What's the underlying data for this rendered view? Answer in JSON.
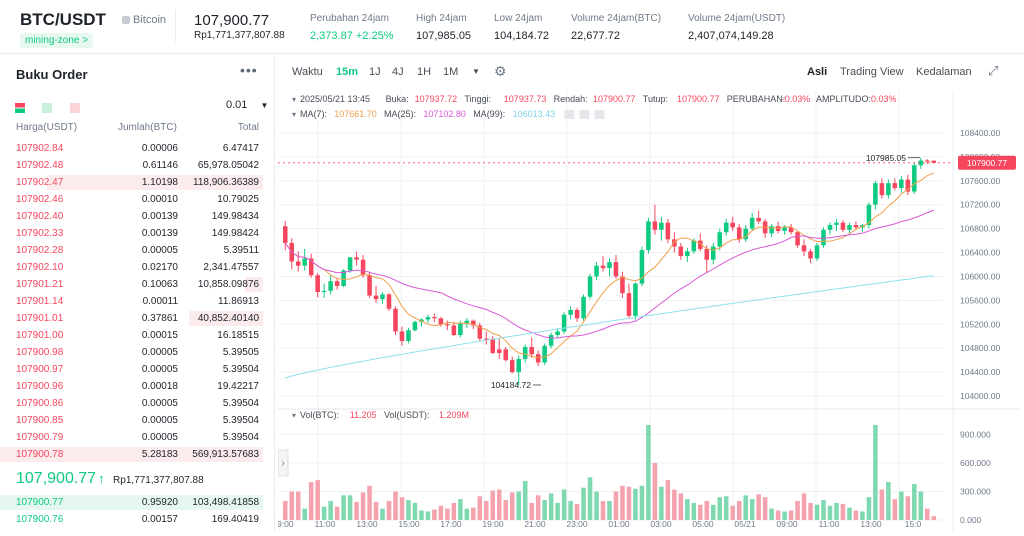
{
  "header": {
    "pair": "BTC/USDT",
    "coin_name": "Bitcoin",
    "tag": "mining-zone",
    "tag_arrow": ">",
    "last_price": "107,900.77",
    "last_price_fiat": "Rp1,771,377,807.88",
    "stats": [
      {
        "label": "Perubahan 24jam",
        "value": "2,373.87 +2.25%",
        "color": "#0ecb81"
      },
      {
        "label": "High 24jam",
        "value": "107,985.05",
        "color": "#1e2329"
      },
      {
        "label": "Low 24jam",
        "value": "104,184.72",
        "color": "#1e2329"
      },
      {
        "label": "Volume 24jam(BTC)",
        "value": "22,677.72",
        "color": "#1e2329"
      },
      {
        "label": "Volume 24jam(USDT)",
        "value": "2,407,074,149.28",
        "color": "#1e2329"
      }
    ]
  },
  "orderbook": {
    "title": "Buku Order",
    "more": "•••",
    "precision": "0.01",
    "col_price": "Harga(USDT)",
    "col_amount": "Jumlah(BTC)",
    "col_total": "Total",
    "asks": [
      {
        "price": "107902.84",
        "amount": "0.00006",
        "total": "6.47417",
        "depth": 0
      },
      {
        "price": "107902.48",
        "amount": "0.61146",
        "total": "65,978.05042",
        "depth": 0
      },
      {
        "price": "107902.47",
        "amount": "1.10198",
        "total": "118,906.36389",
        "depth": 0.82
      },
      {
        "price": "107902.46",
        "amount": "0.00010",
        "total": "10.79025",
        "depth": 0
      },
      {
        "price": "107902.40",
        "amount": "0.00139",
        "total": "149.98434",
        "depth": 0
      },
      {
        "price": "107902.33",
        "amount": "0.00139",
        "total": "149.98424",
        "depth": 0
      },
      {
        "price": "107902.28",
        "amount": "0.00005",
        "total": "5.39511",
        "depth": 0
      },
      {
        "price": "107902.10",
        "amount": "0.02170",
        "total": "2,341.47557",
        "depth": 0
      },
      {
        "price": "107901.21",
        "amount": "0.10063",
        "total": "10,858.09876",
        "depth": 0.07
      },
      {
        "price": "107901.14",
        "amount": "0.00011",
        "total": "11.86913",
        "depth": 0
      },
      {
        "price": "107901.01",
        "amount": "0.37861",
        "total": "40,852.40140",
        "depth": 0.28
      },
      {
        "price": "107901.00",
        "amount": "0.00015",
        "total": "16.18515",
        "depth": 0
      },
      {
        "price": "107900.98",
        "amount": "0.00005",
        "total": "5.39505",
        "depth": 0
      },
      {
        "price": "107900.97",
        "amount": "0.00005",
        "total": "5.39504",
        "depth": 0
      },
      {
        "price": "107900.96",
        "amount": "0.00018",
        "total": "19.42217",
        "depth": 0
      },
      {
        "price": "107900.86",
        "amount": "0.00005",
        "total": "5.39504",
        "depth": 0
      },
      {
        "price": "107900.85",
        "amount": "0.00005",
        "total": "5.39504",
        "depth": 0
      },
      {
        "price": "107900.79",
        "amount": "0.00005",
        "total": "5.39504",
        "depth": 0
      },
      {
        "price": "107900.78",
        "amount": "5.28183",
        "total": "569,913.57683",
        "depth": 1.0
      }
    ],
    "mid_price": "107,900.77",
    "mid_arrow": "↑",
    "mid_fiat": "Rp1,771,377,807.88",
    "bids": [
      {
        "price": "107900.77",
        "amount": "0.95920",
        "total": "103,498.41858",
        "depth": 1.0
      },
      {
        "price": "107900.76",
        "amount": "0.00157",
        "total": "169.40419",
        "depth": 0
      }
    ]
  },
  "toolbar": {
    "time_label": "Waktu",
    "intervals": [
      "15m",
      "1J",
      "4J",
      "1H",
      "1M"
    ],
    "active_interval": "15m",
    "views": [
      "Asli",
      "Trading View",
      "Kedalaman"
    ],
    "active_view": "Asli"
  },
  "chart_data": {
    "type": "candlestick",
    "info_date": "2025/05/21 13:45",
    "info_parts": [
      {
        "t": "Buka:",
        "c": "#474d57"
      },
      {
        "t": "107937.72",
        "c": "#f6465d"
      },
      {
        "t": "Tinggi:",
        "c": "#474d57"
      },
      {
        "t": "107937.73",
        "c": "#f6465d"
      },
      {
        "t": "Rendah:",
        "c": "#474d57"
      },
      {
        "t": "107900.77",
        "c": "#f6465d"
      },
      {
        "t": "Tutup:",
        "c": "#474d57"
      },
      {
        "t": "107900.77",
        "c": "#f6465d"
      },
      {
        "t": "PERUBAHAN:",
        "c": "#474d57"
      },
      {
        "t": "-0.03%",
        "c": "#f6465d"
      },
      {
        "t": "AMPLITUDO:",
        "c": "#474d57"
      },
      {
        "t": "0.03%",
        "c": "#f6465d"
      }
    ],
    "ma_parts": [
      {
        "t": "MA(7):",
        "c": "#474d57"
      },
      {
        "t": "107661.70",
        "c": "#f0a04b"
      },
      {
        "t": "MA(25):",
        "c": "#474d57"
      },
      {
        "t": "107102.80",
        "c": "#d958d9"
      },
      {
        "t": "MA(99):",
        "c": "#474d57"
      },
      {
        "t": "106013.43",
        "c": "#7fd6e8"
      }
    ],
    "vol_parts": [
      {
        "t": "Vol(BTC):",
        "c": "#474d57"
      },
      {
        "t": "11.205",
        "c": "#f6465d"
      },
      {
        "t": "Vol(USDT):",
        "c": "#474d57"
      },
      {
        "t": "1.209M",
        "c": "#f6465d"
      }
    ],
    "price_axis": [
      "108400.00",
      "108000.00",
      "107600.00",
      "107200.00",
      "106800.00",
      "106400.00",
      "106000.00",
      "105600.00",
      "105200.00",
      "104800.00",
      "104400.00",
      "104000.00"
    ],
    "price_range": [
      103900,
      108650
    ],
    "current_price_label": "107900.77",
    "high_label": "107985.05",
    "low_label": "104184.72",
    "vol_axis": [
      "900.000",
      "600.000",
      "300.000",
      "0.000"
    ],
    "vol_range": [
      0,
      1000
    ],
    "time_labels": [
      "09:00",
      "11:00",
      "13:00",
      "15:00",
      "17:00",
      "19:00",
      "21:00",
      "23:00",
      "01:00",
      "03:00",
      "05:00",
      "05/21",
      "09:00",
      "11:00",
      "13:00",
      "15:0"
    ],
    "candles": [
      [
        106840,
        106930,
        106440,
        106560,
        200,
        "down"
      ],
      [
        106560,
        106640,
        106120,
        106250,
        300,
        "down"
      ],
      [
        106250,
        106420,
        106080,
        106180,
        300,
        "down"
      ],
      [
        106180,
        106460,
        106100,
        106300,
        120,
        "up"
      ],
      [
        106300,
        106380,
        105980,
        106020,
        400,
        "down"
      ],
      [
        106020,
        106060,
        105650,
        105740,
        420,
        "down"
      ],
      [
        105740,
        105880,
        105640,
        105760,
        140,
        "up"
      ],
      [
        105760,
        106020,
        105700,
        105920,
        200,
        "up"
      ],
      [
        105920,
        105980,
        105780,
        105840,
        140,
        "down"
      ],
      [
        105840,
        106120,
        105820,
        106100,
        260,
        "up"
      ],
      [
        106100,
        106320,
        106060,
        106320,
        260,
        "up"
      ],
      [
        106320,
        106420,
        106180,
        106280,
        190,
        "down"
      ],
      [
        106280,
        106360,
        105980,
        106020,
        290,
        "down"
      ],
      [
        106020,
        106080,
        105640,
        105680,
        360,
        "down"
      ],
      [
        105680,
        105840,
        105560,
        105620,
        190,
        "down"
      ],
      [
        105620,
        105740,
        105540,
        105700,
        120,
        "up"
      ],
      [
        105700,
        105720,
        105420,
        105460,
        200,
        "down"
      ],
      [
        105460,
        105500,
        105020,
        105080,
        300,
        "down"
      ],
      [
        105080,
        105160,
        104840,
        104920,
        240,
        "down"
      ],
      [
        104920,
        105140,
        104880,
        105100,
        210,
        "up"
      ],
      [
        105100,
        105260,
        105080,
        105240,
        180,
        "up"
      ],
      [
        105240,
        105300,
        105160,
        105280,
        100,
        "up"
      ],
      [
        105280,
        105360,
        105220,
        105320,
        90,
        "up"
      ],
      [
        105320,
        105380,
        105240,
        105300,
        110,
        "down"
      ],
      [
        105300,
        105320,
        105160,
        105200,
        150,
        "down"
      ],
      [
        105200,
        105260,
        105100,
        105180,
        120,
        "down"
      ],
      [
        105180,
        105240,
        105000,
        105020,
        180,
        "down"
      ],
      [
        105020,
        105260,
        104980,
        105220,
        220,
        "up"
      ],
      [
        105220,
        105300,
        105140,
        105260,
        120,
        "up"
      ],
      [
        105260,
        105280,
        105120,
        105180,
        130,
        "down"
      ],
      [
        105180,
        105220,
        104920,
        104960,
        250,
        "down"
      ],
      [
        104960,
        105080,
        104860,
        104960,
        200,
        "down"
      ],
      [
        104960,
        105000,
        104700,
        104720,
        310,
        "down"
      ],
      [
        104720,
        104960,
        104620,
        104780,
        320,
        "down"
      ],
      [
        104780,
        104820,
        104580,
        104600,
        210,
        "down"
      ],
      [
        104600,
        104660,
        104380,
        104400,
        290,
        "down"
      ],
      [
        104400,
        104680,
        104184,
        104620,
        300,
        "up"
      ],
      [
        104620,
        104860,
        104560,
        104820,
        410,
        "up"
      ],
      [
        104820,
        104980,
        104640,
        104700,
        180,
        "down"
      ],
      [
        104700,
        104760,
        104500,
        104560,
        260,
        "down"
      ],
      [
        104560,
        104880,
        104520,
        104840,
        210,
        "up"
      ],
      [
        104840,
        105060,
        104800,
        105020,
        280,
        "up"
      ],
      [
        105020,
        105140,
        104980,
        105080,
        180,
        "up"
      ],
      [
        105080,
        105400,
        105040,
        105360,
        320,
        "up"
      ],
      [
        105360,
        105500,
        105280,
        105440,
        200,
        "up"
      ],
      [
        105440,
        105480,
        105240,
        105300,
        170,
        "down"
      ],
      [
        105300,
        105700,
        105260,
        105660,
        340,
        "up"
      ],
      [
        105660,
        106040,
        105620,
        106000,
        450,
        "up"
      ],
      [
        106000,
        106240,
        105940,
        106180,
        300,
        "up"
      ],
      [
        106180,
        106340,
        106080,
        106140,
        200,
        "down"
      ],
      [
        106140,
        106300,
        106000,
        106240,
        200,
        "up"
      ],
      [
        106240,
        106360,
        105960,
        106000,
        300,
        "down"
      ],
      [
        106000,
        106080,
        105640,
        105720,
        360,
        "down"
      ],
      [
        105720,
        105880,
        105300,
        105340,
        350,
        "down"
      ],
      [
        105340,
        105900,
        105280,
        105880,
        330,
        "up"
      ],
      [
        105880,
        106500,
        105840,
        106440,
        360,
        "up"
      ],
      [
        106440,
        106980,
        106380,
        106920,
        1000,
        "up"
      ],
      [
        106920,
        107200,
        106700,
        106780,
        600,
        "down"
      ],
      [
        106780,
        107000,
        106600,
        106900,
        350,
        "up"
      ],
      [
        106900,
        106960,
        106560,
        106620,
        420,
        "down"
      ],
      [
        106620,
        106740,
        106400,
        106500,
        320,
        "down"
      ],
      [
        106500,
        106560,
        106280,
        106340,
        280,
        "down"
      ],
      [
        106340,
        106480,
        106240,
        106420,
        220,
        "up"
      ],
      [
        106420,
        106640,
        106380,
        106600,
        180,
        "up"
      ],
      [
        106600,
        106720,
        106420,
        106460,
        160,
        "down"
      ],
      [
        106460,
        106520,
        106060,
        106280,
        200,
        "down"
      ],
      [
        106280,
        106560,
        106200,
        106500,
        160,
        "up"
      ],
      [
        106500,
        106800,
        106440,
        106740,
        240,
        "up"
      ],
      [
        106740,
        106960,
        106680,
        106900,
        250,
        "up"
      ],
      [
        106900,
        107000,
        106760,
        106820,
        150,
        "down"
      ],
      [
        106820,
        106880,
        106560,
        106620,
        200,
        "down"
      ],
      [
        106620,
        106860,
        106580,
        106800,
        260,
        "up"
      ],
      [
        106800,
        107060,
        106760,
        106980,
        220,
        "up"
      ],
      [
        106980,
        107100,
        106880,
        106920,
        270,
        "down"
      ],
      [
        106920,
        106960,
        106640,
        106720,
        240,
        "down"
      ],
      [
        106720,
        106880,
        106660,
        106840,
        120,
        "up"
      ],
      [
        106840,
        106920,
        106720,
        106760,
        100,
        "down"
      ],
      [
        106760,
        106860,
        106700,
        106820,
        90,
        "up"
      ],
      [
        106820,
        106880,
        106700,
        106740,
        100,
        "down"
      ],
      [
        106740,
        106760,
        106480,
        106520,
        200,
        "down"
      ],
      [
        106520,
        106620,
        106340,
        106420,
        280,
        "down"
      ],
      [
        106420,
        106460,
        106220,
        106300,
        180,
        "down"
      ],
      [
        106300,
        106560,
        106260,
        106520,
        160,
        "up"
      ],
      [
        106520,
        106820,
        106480,
        106780,
        210,
        "up"
      ],
      [
        106780,
        106900,
        106700,
        106860,
        150,
        "up"
      ],
      [
        106860,
        106960,
        106760,
        106900,
        180,
        "up"
      ],
      [
        106900,
        106940,
        106740,
        106780,
        170,
        "down"
      ],
      [
        106780,
        106900,
        106720,
        106860,
        130,
        "up"
      ],
      [
        106860,
        106920,
        106780,
        106820,
        100,
        "down"
      ],
      [
        106820,
        106880,
        106740,
        106860,
        90,
        "up"
      ],
      [
        106860,
        107240,
        106800,
        107200,
        240,
        "up"
      ],
      [
        107200,
        107600,
        107120,
        107560,
        1000,
        "up"
      ],
      [
        107560,
        107640,
        107300,
        107360,
        320,
        "down"
      ],
      [
        107360,
        107620,
        107300,
        107560,
        400,
        "up"
      ],
      [
        107560,
        107640,
        107440,
        107480,
        220,
        "down"
      ],
      [
        107480,
        107680,
        107400,
        107620,
        300,
        "up"
      ],
      [
        107620,
        107700,
        107360,
        107420,
        250,
        "down"
      ],
      [
        107420,
        107900,
        107380,
        107860,
        380,
        "up"
      ],
      [
        107860,
        107985,
        107800,
        107940,
        300,
        "up"
      ],
      [
        107940,
        107960,
        107880,
        107920,
        120,
        "down"
      ],
      [
        107937,
        107937,
        107900,
        107900,
        40,
        "down"
      ]
    ]
  }
}
